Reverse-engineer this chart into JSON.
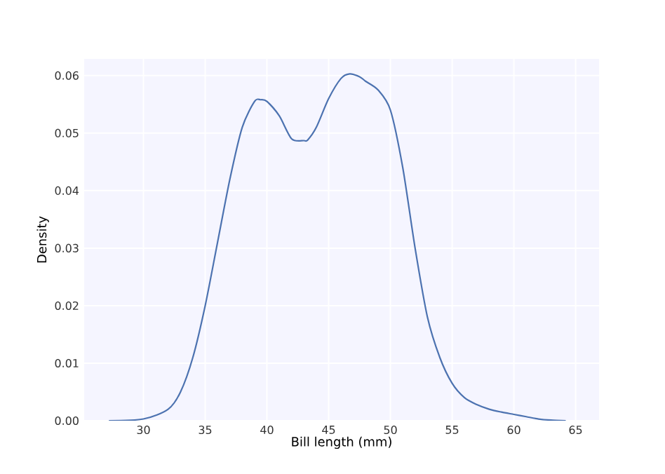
{
  "chart_data": {
    "type": "line",
    "xlabel": "Bill length (mm)",
    "ylabel": "Density",
    "xlim": [
      25.2,
      66.9
    ],
    "ylim": [
      0,
      0.0629
    ],
    "xticks": [
      30,
      35,
      40,
      45,
      50,
      55,
      60,
      65
    ],
    "yticks": [
      {
        "value": 0,
        "label": "0.00"
      },
      {
        "value": 0.01,
        "label": "0.01"
      },
      {
        "value": 0.02,
        "label": "0.02"
      },
      {
        "value": 0.03,
        "label": "0.03"
      },
      {
        "value": 0.04,
        "label": "0.04"
      },
      {
        "value": 0.05,
        "label": "0.05"
      },
      {
        "value": 0.06,
        "label": "0.06"
      }
    ],
    "grid": true,
    "marker": "none",
    "line_style": "solid",
    "series": [
      {
        "color": "#4c72b0",
        "x": [
          27.2,
          30,
          32,
          33,
          34,
          35,
          36,
          37,
          38,
          39,
          39.5,
          40,
          41,
          42,
          43,
          43.3,
          44,
          45,
          46,
          46.7,
          47.5,
          48,
          49,
          50,
          51,
          52,
          53,
          54,
          55,
          56,
          57,
          58,
          59,
          60,
          61,
          62,
          63,
          64.2
        ],
        "values": [
          0,
          0.0003,
          0.002,
          0.005,
          0.011,
          0.02,
          0.031,
          0.042,
          0.051,
          0.0555,
          0.0558,
          0.0555,
          0.053,
          0.049,
          0.0487,
          0.0488,
          0.051,
          0.056,
          0.0595,
          0.0603,
          0.0598,
          0.059,
          0.0575,
          0.054,
          0.044,
          0.03,
          0.018,
          0.011,
          0.0065,
          0.004,
          0.0028,
          0.002,
          0.0015,
          0.0011,
          0.0007,
          0.0003,
          0.0001,
          0
        ]
      }
    ]
  }
}
